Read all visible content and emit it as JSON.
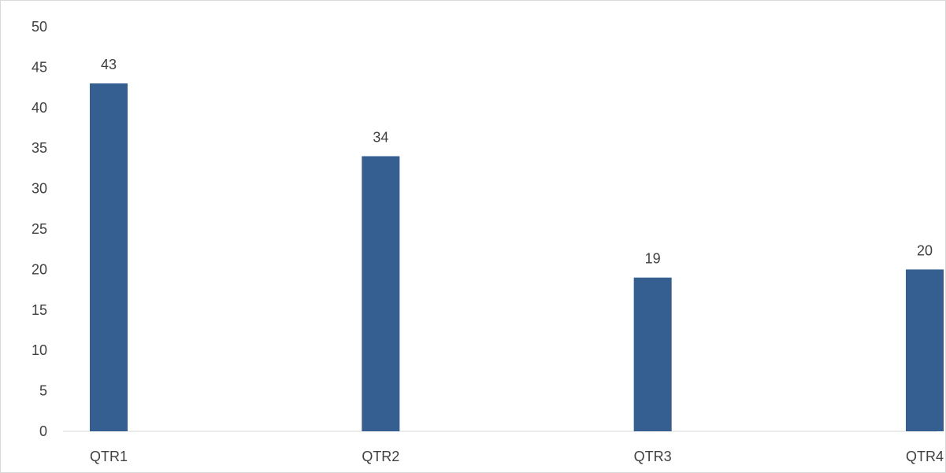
{
  "chart_data": {
    "type": "bar",
    "categories": [
      "QTR1",
      "QTR2",
      "QTR3",
      "QTR4"
    ],
    "values": [
      43,
      34,
      19,
      20
    ],
    "data_labels": [
      "43",
      "34",
      "19",
      "20"
    ],
    "y_ticks": [
      "0",
      "5",
      "10",
      "15",
      "20",
      "25",
      "30",
      "35",
      "40",
      "45",
      "50"
    ],
    "ylim": [
      0,
      50
    ],
    "ytick_step": 5,
    "grid": false,
    "legend": "none",
    "title": "",
    "xlabel": "",
    "ylabel": "",
    "bar_color": "#365f91",
    "text_color": "#404040",
    "axis_color": "#d9d9d9"
  }
}
